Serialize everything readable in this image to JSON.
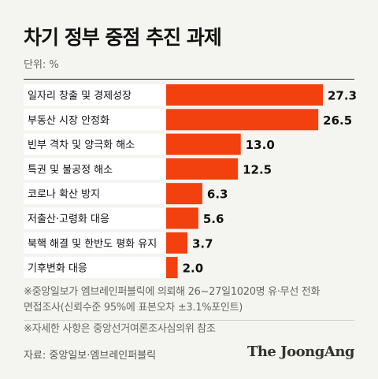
{
  "header": {
    "title": "차기 정부 중점 추진 과제",
    "unit": "단위: %"
  },
  "chart_data": {
    "type": "bar",
    "orientation": "horizontal",
    "categories": [
      "일자리 창출 및 경제성장",
      "부동산 시장 안정화",
      "빈부 격차 및 양극화 해소",
      "특권 및 불공정 해소",
      "코로나 확산 방지",
      "저출산·고령화 대응",
      "북핵 해결 및 한반도 평화 유지",
      "기후변화 대응"
    ],
    "values": [
      27.3,
      26.5,
      13.0,
      12.5,
      6.3,
      5.6,
      3.7,
      2.0
    ],
    "value_labels": [
      "27.3",
      "26.5",
      "13.0",
      "12.5",
      "6.3",
      "5.6",
      "3.7",
      "2.0"
    ],
    "bar_color": "#f2400f",
    "grid": false,
    "legend": "none"
  },
  "notes": {
    "note1": "※중앙일보가 엠브레인퍼블릭에 의뢰해 26~27일1020명 유·무선 전화",
    "note2": "면접조사(신뢰수준 95%에 표본오차 ±3.1%포인트)",
    "note3": "※자세한 사항은 중앙선거여론조사심의위 참조"
  },
  "footer": {
    "source": "자료: 중앙일보·엠브레인퍼블릭",
    "brand": "The JoongAng"
  }
}
